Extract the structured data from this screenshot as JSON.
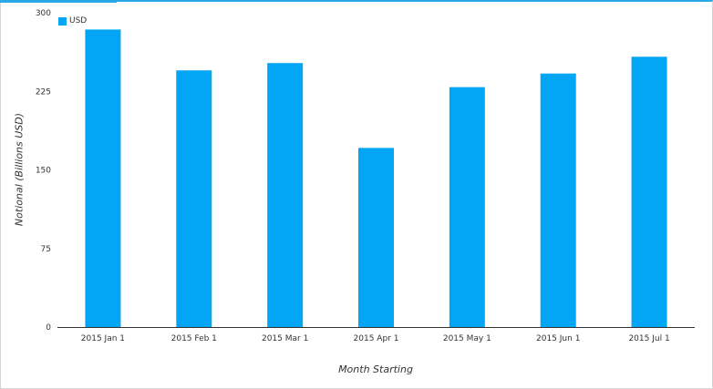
{
  "chart_data": {
    "type": "bar",
    "categories": [
      "2015 Jan 1",
      "2015 Feb 1",
      "2015 Mar 1",
      "2015 Apr 1",
      "2015 May 1",
      "2015 Jun 1",
      "2015 Jul 1"
    ],
    "series": [
      {
        "name": "USD",
        "values": [
          284,
          245,
          252,
          171,
          229,
          242,
          258
        ],
        "color": "#03a6f4"
      }
    ],
    "xlabel": "Month Starting",
    "ylabel": "Notional (Billions USD)",
    "ylim": [
      0,
      300
    ],
    "yticks": [
      "0",
      "75",
      "150",
      "225",
      "300"
    ],
    "grid": false,
    "legend": "top-left"
  }
}
